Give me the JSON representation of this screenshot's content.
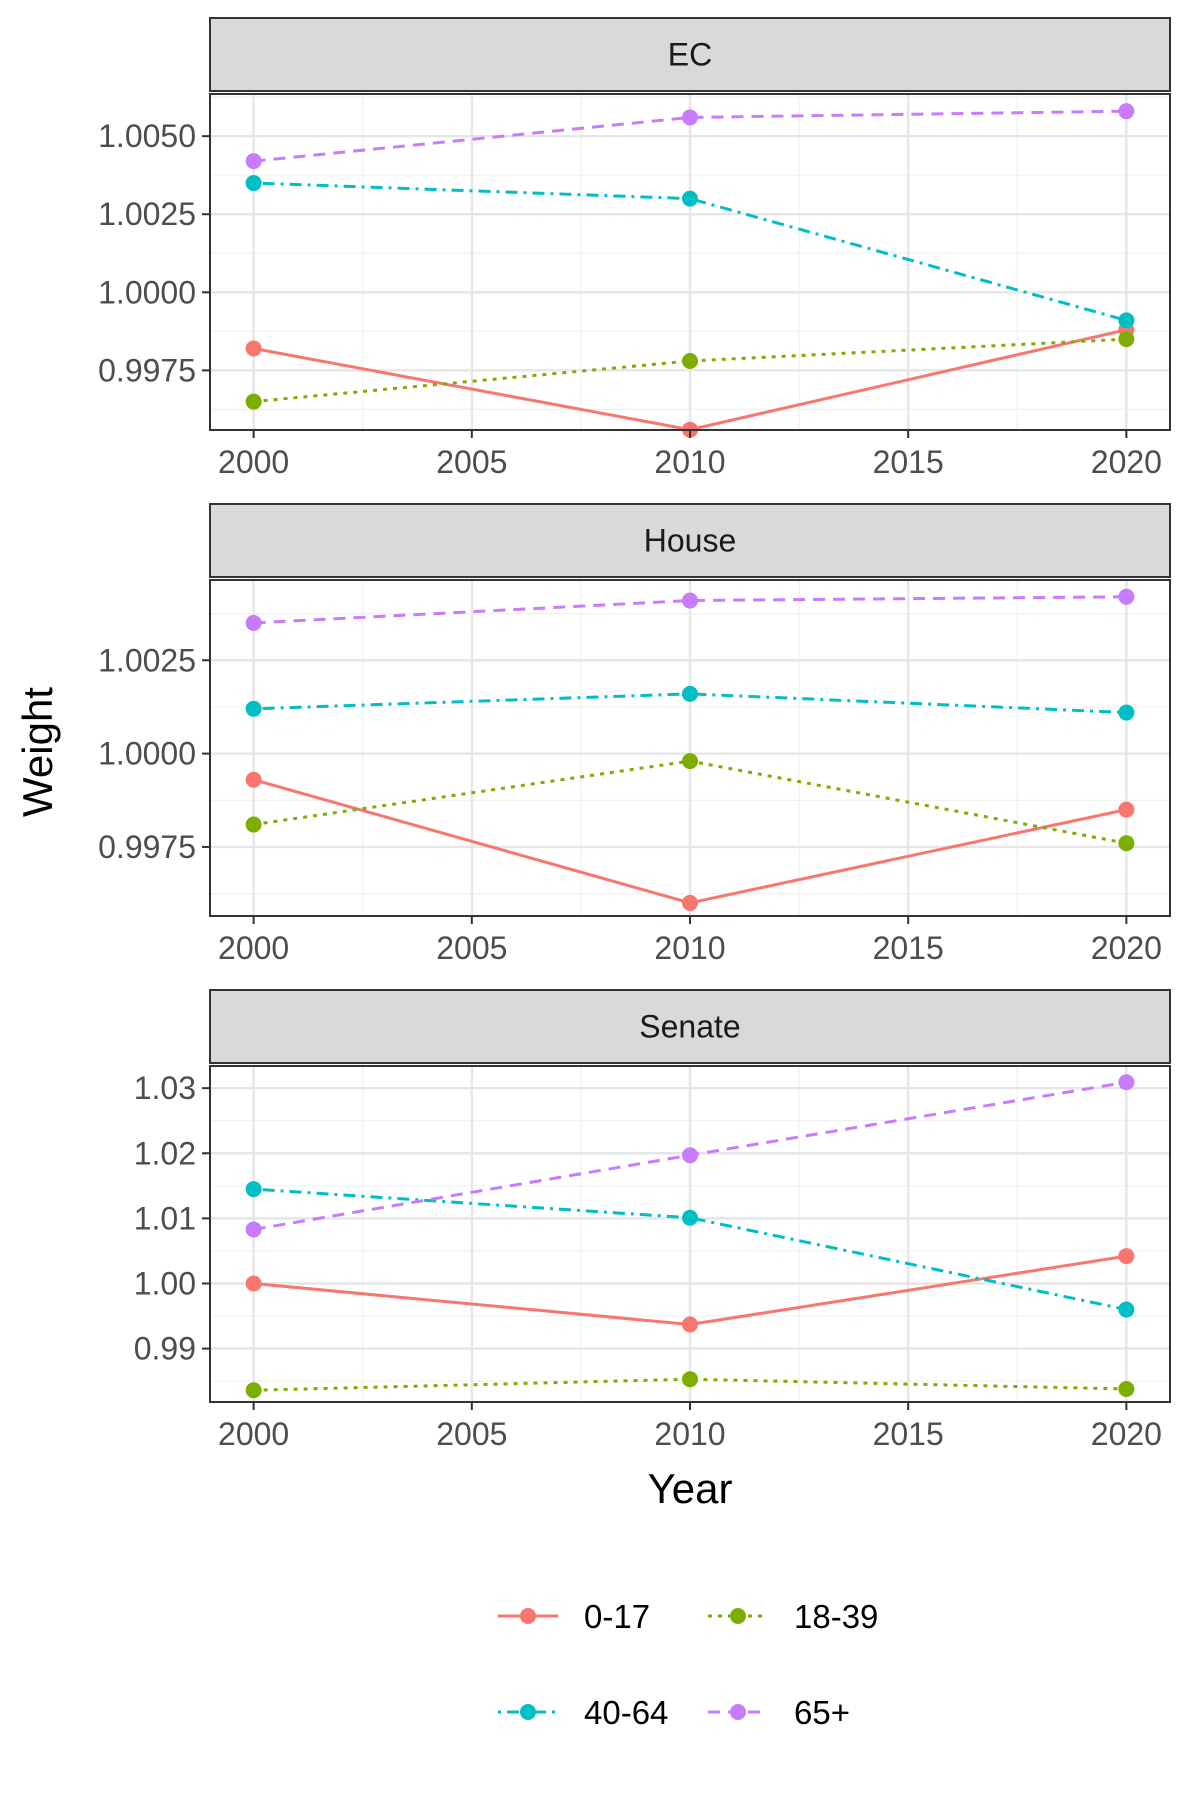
{
  "chart_data": {
    "type": "line",
    "xlabel": "Year",
    "ylabel": "Weight",
    "x_ticks": [
      2000,
      2005,
      2010,
      2015,
      2020
    ],
    "xlim": [
      1999,
      2021
    ],
    "legend": {
      "position": "bottom",
      "entries": [
        {
          "name": "0-17",
          "color": "#F8766D",
          "dash": "solid"
        },
        {
          "name": "18-39",
          "color": "#7CAE00",
          "dash": "dotted"
        },
        {
          "name": "40-64",
          "color": "#00BFC4",
          "dash": "dashdot"
        },
        {
          "name": "65+",
          "color": "#C77CFF",
          "dash": "dashed"
        }
      ]
    },
    "panels": [
      {
        "title": "EC",
        "ylim": [
          0.99559,
          1.00635
        ],
        "y_ticks": [
          0.9975,
          1.0,
          1.0025,
          1.005
        ],
        "y_tick_labels": [
          "0.9975",
          "1.0000",
          "1.0025",
          "1.0050"
        ],
        "series": [
          {
            "name": "0-17",
            "x": [
              2000,
              2010,
              2020
            ],
            "y": [
              0.9982,
              0.9956,
              0.9988
            ]
          },
          {
            "name": "18-39",
            "x": [
              2000,
              2010,
              2020
            ],
            "y": [
              0.9965,
              0.9978,
              0.9985
            ]
          },
          {
            "name": "40-64",
            "x": [
              2000,
              2010,
              2020
            ],
            "y": [
              1.0035,
              1.003,
              0.9991
            ]
          },
          {
            "name": "65+",
            "x": [
              2000,
              2010,
              2020
            ],
            "y": [
              1.0042,
              1.0056,
              1.0058
            ]
          }
        ]
      },
      {
        "title": "House",
        "ylim": [
          0.99565,
          1.00465
        ],
        "y_ticks": [
          0.9975,
          1.0,
          1.0025
        ],
        "y_tick_labels": [
          "0.9975",
          "1.0000",
          "1.0025"
        ],
        "series": [
          {
            "name": "0-17",
            "x": [
              2000,
              2010,
              2020
            ],
            "y": [
              0.9993,
              0.996,
              0.9985
            ]
          },
          {
            "name": "18-39",
            "x": [
              2000,
              2010,
              2020
            ],
            "y": [
              0.9981,
              0.9998,
              0.9976
            ]
          },
          {
            "name": "40-64",
            "x": [
              2000,
              2010,
              2020
            ],
            "y": [
              1.0012,
              1.0016,
              1.0011
            ]
          },
          {
            "name": "65+",
            "x": [
              2000,
              2010,
              2020
            ],
            "y": [
              1.0035,
              1.0041,
              1.0042
            ]
          }
        ]
      },
      {
        "title": "Senate",
        "ylim": [
          0.9818,
          1.0334
        ],
        "y_ticks": [
          0.99,
          1.0,
          1.01,
          1.02,
          1.03
        ],
        "y_tick_labels": [
          "0.99",
          "1.00",
          "1.01",
          "1.02",
          "1.03"
        ],
        "series": [
          {
            "name": "0-17",
            "x": [
              2000,
              2010,
              2020
            ],
            "y": [
              1.0,
              0.9937,
              1.0042
            ]
          },
          {
            "name": "18-39",
            "x": [
              2000,
              2010,
              2020
            ],
            "y": [
              0.9836,
              0.9853,
              0.9838
            ]
          },
          {
            "name": "40-64",
            "x": [
              2000,
              2010,
              2020
            ],
            "y": [
              1.0145,
              1.0101,
              0.996
            ]
          },
          {
            "name": "65+",
            "x": [
              2000,
              2010,
              2020
            ],
            "y": [
              1.0083,
              1.0197,
              1.0309
            ]
          }
        ]
      }
    ]
  }
}
